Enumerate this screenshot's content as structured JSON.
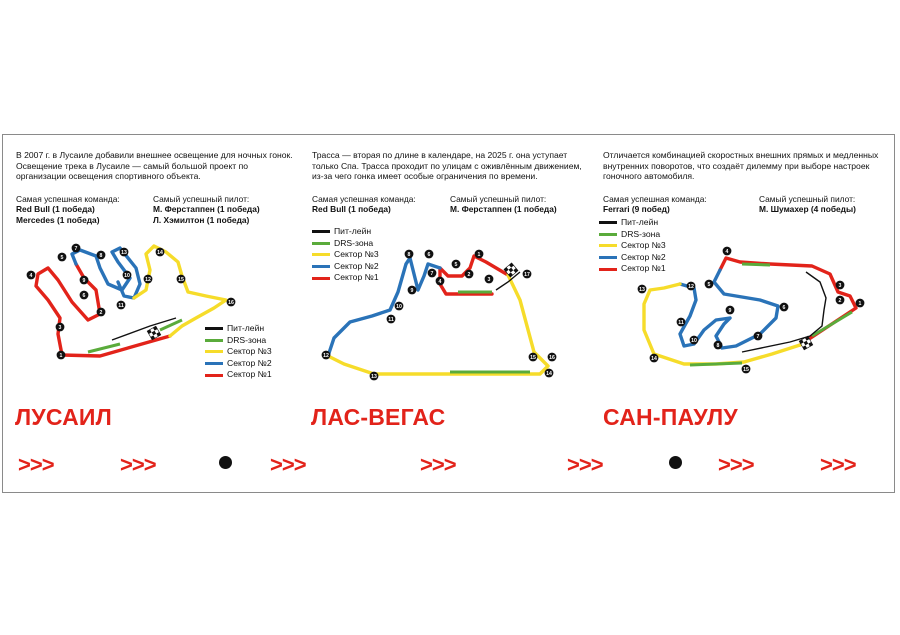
{
  "tracks": [
    {
      "intro": "В 2007 г. в Лусаиле добавили внешнее освещение для ночных гонок. Освещение трека в Лусаиле — самый большой проект по организации освещения спортивного объекта.",
      "team_label": "Самая успешная команда:",
      "team_lines": [
        "Red Bull (1 победа)",
        "Mercedes (1 победа)"
      ],
      "driver_label": "Самый успешный пилот:",
      "driver_lines": [
        "М. Ферстаппен (1 победа)",
        "Л. Хэмилтон (1 победа)"
      ],
      "name": "ЛУСАИЛ",
      "turns": [
        "1",
        "2",
        "3",
        "4",
        "5",
        "6",
        "7",
        "8",
        "9",
        "10",
        "11",
        "12",
        "13",
        "14",
        "15",
        "16"
      ]
    },
    {
      "intro": "Трасса — вторая по длине в календаре, на 2025 г. она уступает только Спа. Трасса проходит по улицам с оживлённым движением, из-за чего гонка имеет особые ограничения по времени.",
      "team_label": "Самая успешная команда:",
      "team_lines": [
        "Red Bull (1 победа)"
      ],
      "driver_label": "Самый успешный пилот:",
      "driver_lines": [
        "М. Ферстаппен (1 победа)"
      ],
      "name": "ЛАС-ВЕГАС",
      "turns": [
        "1",
        "2",
        "3",
        "4",
        "5",
        "6",
        "7",
        "8",
        "9",
        "10",
        "11",
        "12",
        "13",
        "14",
        "15",
        "16",
        "17"
      ]
    },
    {
      "intro": "Отличается комбинацией скоростных внешних прямых и медленных внутренних поворотов, что создаёт дилемму при выборе настроек гоночного автомобиля.",
      "team_label": "Самая успешная команда:",
      "team_lines": [
        "Ferrari (9 побед)"
      ],
      "driver_label": "Самый успешный пилот:",
      "driver_lines": [
        "М. Шумахер (4 победы)"
      ],
      "name": "САН-ПАУЛУ",
      "turns": [
        "1",
        "2",
        "3",
        "4",
        "5",
        "6",
        "7",
        "8",
        "9",
        "10",
        "11",
        "12",
        "13",
        "14",
        "15"
      ]
    }
  ],
  "legend": {
    "pit": "Пит-лейн",
    "drs": "DRS-зона",
    "s3": "Сектор №3",
    "s2": "Сектор №2",
    "s1": "Сектор №1"
  },
  "colors": {
    "sector1": "#e2231a",
    "sector2": "#2a73b8",
    "sector3": "#f6dc2a",
    "drs": "#5aab3b",
    "pit": "#111111"
  },
  "chevron": ">>>"
}
